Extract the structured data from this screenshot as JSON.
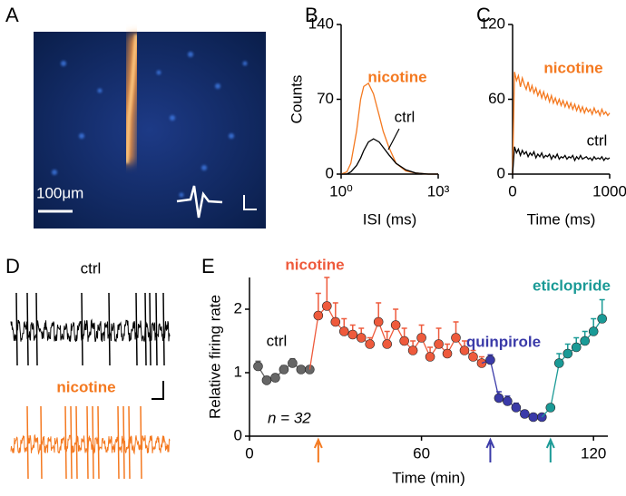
{
  "panels": {
    "A": {
      "label": "A",
      "scale_label": "100μm"
    },
    "D": {
      "label": "D",
      "trace_labels": [
        "ctrl",
        "nicotine"
      ]
    }
  },
  "chart_data": [
    {
      "type": "line",
      "panel_label": "B",
      "xlabel": "ISI (ms)",
      "ylabel": "Counts",
      "xscale": "log",
      "x": [
        1,
        1.5,
        2,
        3,
        4,
        5,
        7,
        10,
        15,
        20,
        30,
        50,
        100,
        200,
        500,
        1000
      ],
      "series": [
        {
          "name": "nicotine",
          "color": "#f47920",
          "values": [
            0,
            2,
            10,
            40,
            70,
            82,
            85,
            75,
            55,
            40,
            25,
            10,
            3,
            1,
            0,
            0
          ]
        },
        {
          "name": "ctrl",
          "color": "#000000",
          "values": [
            0,
            0,
            2,
            8,
            15,
            22,
            30,
            33,
            30,
            25,
            18,
            10,
            4,
            1,
            0,
            0
          ]
        }
      ],
      "xlim": [
        1,
        1000
      ],
      "xticks": [
        {
          "value": 1,
          "label": "10⁰"
        },
        {
          "value": 1000,
          "label": "10³"
        }
      ],
      "ylim": [
        0,
        140
      ],
      "yticks": [
        0,
        70,
        140
      ]
    },
    {
      "type": "line",
      "panel_label": "C",
      "xlabel": "Time (ms)",
      "x": [
        0,
        20,
        40,
        60,
        80,
        100,
        120,
        140,
        160,
        180,
        200,
        220,
        240,
        260,
        280,
        300,
        320,
        340,
        360,
        380,
        400,
        420,
        440,
        460,
        480,
        500,
        520,
        540,
        560,
        580,
        600,
        620,
        640,
        660,
        680,
        700,
        720,
        740,
        760,
        780,
        800,
        820,
        840,
        860,
        880,
        900,
        920,
        940,
        960,
        980,
        1000
      ],
      "series": [
        {
          "name": "nicotine",
          "color": "#f47920",
          "values": [
            0,
            82,
            75,
            79,
            70,
            77,
            72,
            68,
            74,
            66,
            71,
            65,
            69,
            63,
            67,
            61,
            66,
            60,
            64,
            58,
            63,
            57,
            61,
            56,
            60,
            55,
            59,
            54,
            58,
            53,
            57,
            52,
            56,
            51,
            55,
            50,
            54,
            49,
            53,
            50,
            52,
            48,
            53,
            49,
            51,
            47,
            52,
            48,
            50,
            47,
            49
          ]
        },
        {
          "name": "ctrl",
          "color": "#000000",
          "values": [
            0,
            22,
            17,
            20,
            15,
            19,
            16,
            18,
            14,
            17,
            15,
            18,
            13,
            16,
            14,
            17,
            13,
            15,
            14,
            16,
            12,
            15,
            13,
            16,
            12,
            14,
            13,
            15,
            12,
            14,
            13,
            15,
            11,
            14,
            12,
            15,
            12,
            13,
            14,
            12,
            13,
            11,
            14,
            12,
            13,
            12,
            14,
            11,
            13,
            12,
            13
          ]
        }
      ],
      "xlim": [
        0,
        1000
      ],
      "xticks": [
        0,
        1000
      ],
      "ylim": [
        0,
        120
      ],
      "yticks": [
        0,
        60,
        120
      ]
    },
    {
      "type": "errorline",
      "panel_label": "E",
      "xlabel": "Time (min)",
      "ylabel": "Relative firing rate",
      "annotation": "n = 32",
      "series": [
        {
          "name": "ctrl",
          "color": "#666666",
          "x": [
            3,
            6,
            9,
            12,
            15,
            18,
            21
          ],
          "values": [
            1.1,
            0.88,
            0.92,
            1.05,
            1.15,
            1.05,
            1.05
          ],
          "errors": [
            0.08,
            0.06,
            0.05,
            0.06,
            0.07,
            0.05,
            0.05
          ]
        },
        {
          "name": "nicotine",
          "color": "#ee5a3c",
          "x": [
            24,
            27,
            30,
            33,
            36,
            39,
            42,
            45,
            48,
            51,
            54,
            57,
            60,
            63,
            66,
            69,
            72,
            75,
            78,
            81
          ],
          "values": [
            1.9,
            2.05,
            1.8,
            1.65,
            1.6,
            1.55,
            1.45,
            1.8,
            1.45,
            1.75,
            1.5,
            1.35,
            1.55,
            1.25,
            1.45,
            1.3,
            1.55,
            1.35,
            1.25,
            1.15
          ],
          "errors": [
            0.35,
            0.45,
            0.3,
            0.2,
            0.15,
            0.15,
            0.1,
            0.3,
            0.2,
            0.25,
            0.2,
            0.15,
            0.2,
            0.15,
            0.25,
            0.15,
            0.25,
            0.15,
            0.1,
            0.1
          ]
        },
        {
          "name": "quinpirole",
          "color": "#3a3aa8",
          "x": [
            84,
            87,
            90,
            93,
            96,
            99,
            102
          ],
          "values": [
            1.2,
            0.6,
            0.55,
            0.45,
            0.35,
            0.3,
            0.3
          ],
          "errors": [
            0.08,
            0.1,
            0.08,
            0.07,
            0.05,
            0.04,
            0.04
          ]
        },
        {
          "name": "eticlopride",
          "color": "#1a9a96",
          "x": [
            105,
            108,
            111,
            114,
            117,
            120,
            123
          ],
          "values": [
            0.45,
            1.15,
            1.3,
            1.4,
            1.5,
            1.65,
            1.85
          ],
          "errors": [
            0.05,
            0.15,
            0.15,
            0.15,
            0.15,
            0.2,
            0.3
          ]
        }
      ],
      "arrows": [
        {
          "x": 24,
          "color": "#f47920"
        },
        {
          "x": 84,
          "color": "#3a3aa8"
        },
        {
          "x": 105,
          "color": "#1a9a96"
        }
      ],
      "xlim": [
        0,
        125
      ],
      "xticks": [
        0,
        60,
        120
      ],
      "ylim": [
        0,
        2.5
      ],
      "yticks": [
        0,
        1,
        2
      ]
    }
  ]
}
